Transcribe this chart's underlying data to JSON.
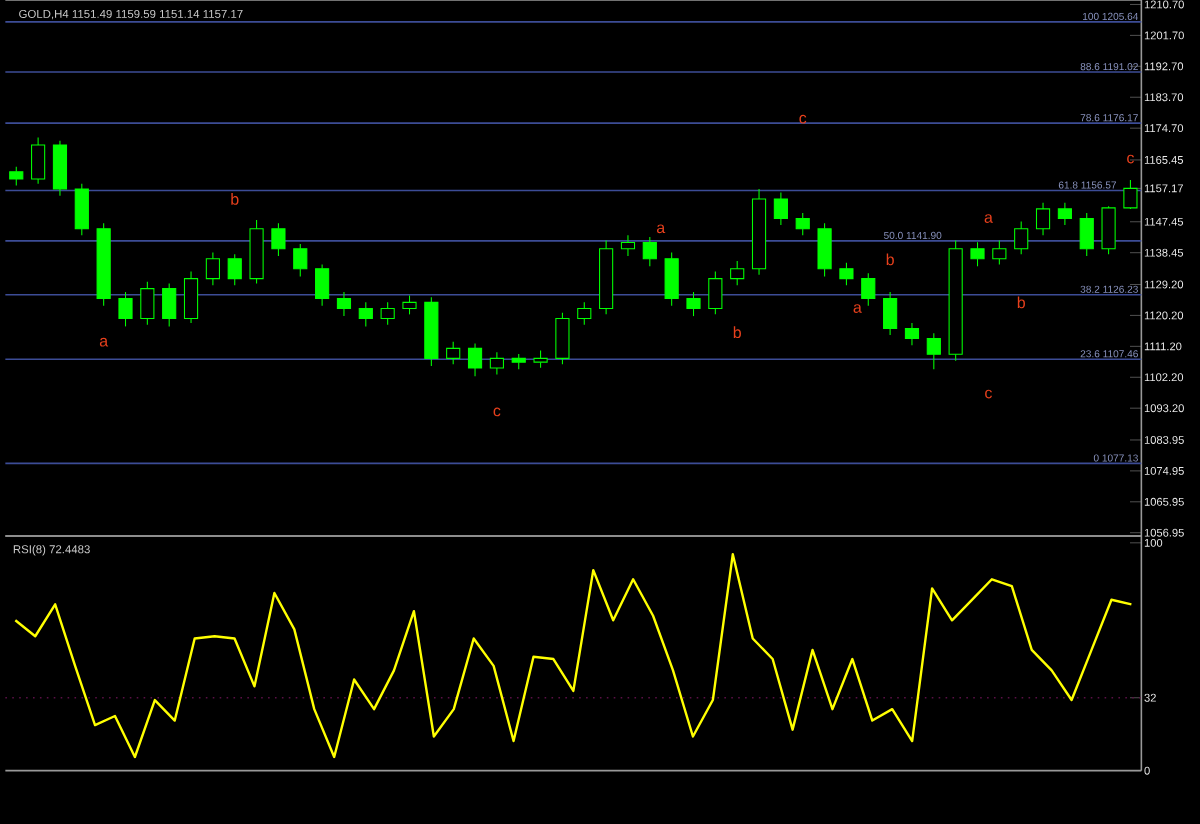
{
  "chart_data": [
    {
      "type": "candlestick",
      "color": "#00ff00",
      "categories": [
        null,
        null,
        null,
        null,
        null,
        null,
        null,
        null,
        null,
        null,
        null,
        null,
        null,
        null,
        null,
        null,
        null,
        null,
        null,
        null,
        null,
        null,
        null,
        null,
        null,
        null,
        null,
        null,
        null,
        null,
        null,
        null,
        null,
        null,
        null,
        null,
        null,
        null,
        null,
        null,
        null,
        null,
        null,
        null,
        null,
        null,
        null,
        null,
        null,
        null,
        null,
        null
      ],
      "ohlc": [
        [
          1162,
          1163.5,
          1158,
          1159.9
        ],
        [
          1159.9,
          1172,
          1158.5,
          1169.8
        ],
        [
          1169.8,
          1171,
          1155,
          1157.0
        ],
        [
          1157,
          1158.5,
          1143.5,
          1145.4
        ],
        [
          1145.4,
          1147,
          1123,
          1125.1
        ],
        [
          1125.1,
          1127,
          1117,
          1119.3
        ],
        [
          1119.3,
          1130,
          1117.5,
          1128.0
        ],
        [
          1128,
          1129.5,
          1117,
          1119.3
        ],
        [
          1119.3,
          1133,
          1118,
          1130.9
        ],
        [
          1130.9,
          1138.5,
          1129,
          1136.7
        ],
        [
          1136.7,
          1138,
          1129,
          1130.9
        ],
        [
          1130.9,
          1148,
          1129.5,
          1145.4
        ],
        [
          1145.4,
          1147,
          1137.5,
          1139.6
        ],
        [
          1139.6,
          1141,
          1131.5,
          1133.8
        ],
        [
          1133.8,
          1135,
          1123,
          1125.1
        ],
        [
          1125.1,
          1127,
          1120,
          1122.2
        ],
        [
          1122.2,
          1124,
          1117,
          1119.3
        ],
        [
          1119.3,
          1124,
          1117.5,
          1122.2
        ],
        [
          1122.2,
          1126,
          1120.5,
          1124.0
        ],
        [
          1124,
          1125.5,
          1105.5,
          1107.7
        ],
        [
          1107.7,
          1112.5,
          1106,
          1110.6
        ],
        [
          1110.6,
          1112,
          1102.5,
          1104.9
        ],
        [
          1104.9,
          1109.5,
          1103,
          1107.7
        ],
        [
          1107.7,
          1109,
          1104.5,
          1106.6
        ],
        [
          1106.6,
          1110,
          1105,
          1107.7
        ],
        [
          1107.7,
          1121,
          1106,
          1119.3
        ],
        [
          1119.3,
          1124,
          1117.5,
          1122.2
        ],
        [
          1122.2,
          1142,
          1120.5,
          1139.6
        ],
        [
          1139.6,
          1143.5,
          1137.5,
          1141.4
        ],
        [
          1141.4,
          1143,
          1134.5,
          1136.7
        ],
        [
          1136.7,
          1138.5,
          1123,
          1125.1
        ],
        [
          1125.1,
          1127,
          1120,
          1122.2
        ],
        [
          1122.2,
          1133,
          1120.5,
          1130.9
        ],
        [
          1130.9,
          1136,
          1129,
          1133.8
        ],
        [
          1133.8,
          1157,
          1132,
          1154.1
        ],
        [
          1154.1,
          1156,
          1146.5,
          1148.4
        ],
        [
          1148.4,
          1150,
          1143.5,
          1145.4
        ],
        [
          1145.4,
          1147,
          1131.5,
          1133.8
        ],
        [
          1133.8,
          1135.5,
          1129,
          1130.9
        ],
        [
          1130.9,
          1132.5,
          1123,
          1125.1
        ],
        [
          1125.1,
          1127,
          1114.5,
          1116.4
        ],
        [
          1116.4,
          1118,
          1111.5,
          1113.5
        ],
        [
          1113.5,
          1115,
          1104.5,
          1108.9
        ],
        [
          1108.9,
          1142,
          1107,
          1139.6
        ],
        [
          1139.6,
          1141.5,
          1134.5,
          1136.7
        ],
        [
          1136.7,
          1142,
          1135,
          1139.6
        ],
        [
          1139.6,
          1147.5,
          1138,
          1145.4
        ],
        [
          1145.4,
          1153,
          1143.5,
          1151.2
        ],
        [
          1151.2,
          1153,
          1146.5,
          1148.4
        ],
        [
          1148.4,
          1150,
          1137.5,
          1139.6
        ],
        [
          1139.6,
          1152,
          1138,
          1151.49
        ],
        [
          1151.49,
          1159.59,
          1151.14,
          1157.17
        ]
      ],
      "ylim": [
        1056,
        1212
      ],
      "yticks": [
        {
          "value": 1210.7,
          "label": "1210.70"
        },
        {
          "value": 1201.7,
          "label": "1201.70"
        },
        {
          "value": 1192.7,
          "label": "1192.70"
        },
        {
          "value": 1183.7,
          "label": "1183.70"
        },
        {
          "value": 1174.7,
          "label": "1174.70"
        },
        {
          "value": 1165.45,
          "label": "1165.45"
        },
        {
          "value": 1157.17,
          "label": "1157.17"
        },
        {
          "value": 1147.45,
          "label": "1147.45"
        },
        {
          "value": 1138.45,
          "label": "1138.45"
        },
        {
          "value": 1129.2,
          "label": "1129.20"
        },
        {
          "value": 1120.2,
          "label": "1120.20"
        },
        {
          "value": 1111.2,
          "label": "1111.20"
        },
        {
          "value": 1102.2,
          "label": "1102.20"
        },
        {
          "value": 1093.2,
          "label": "1093.20"
        },
        {
          "value": 1083.95,
          "label": "1083.95"
        },
        {
          "value": 1074.95,
          "label": "1074.95"
        },
        {
          "value": 1065.95,
          "label": "1065.95"
        },
        {
          "value": 1056.95,
          "label": "1056.95"
        }
      ],
      "tick_labels": "y",
      "ref_lines": [
        {
          "axis": "y",
          "value": 1205.64,
          "label": "100 1205.64",
          "color": "#3c4c96"
        },
        {
          "axis": "y",
          "value": 1191.02,
          "label": "88.6 1191.02",
          "color": "#3c4c96"
        },
        {
          "axis": "y",
          "value": 1176.17,
          "label": "78.6 1176.17",
          "color": "#3c4c96"
        },
        {
          "axis": "y",
          "value": 1156.57,
          "label": "61.8 1156.57",
          "color": "#3c4c96"
        },
        {
          "axis": "y",
          "value": 1141.9,
          "label": "50.0 1141.90",
          "color": "#3c4c96"
        },
        {
          "axis": "y",
          "value": 1126.23,
          "label": "38.2 1126.23",
          "color": "#3c4c96"
        },
        {
          "axis": "y",
          "value": 1107.46,
          "label": "23.6 1107.46",
          "color": "#3c4c96"
        },
        {
          "axis": "y",
          "value": 1077.13,
          "label": "0 1077.13",
          "color": "#3c4c96"
        }
      ],
      "annotations": [
        "GOLD,H4  1151.49 1159.59 1151.14 1157.17",
        "a",
        "b",
        "c",
        "a",
        "b",
        "c",
        "a",
        "b",
        "a",
        "b",
        "c",
        "c"
      ]
    },
    {
      "type": "line",
      "categories": [
        null,
        null,
        null,
        null,
        null,
        null,
        null,
        null,
        null,
        null,
        null,
        null,
        null,
        null,
        null,
        null,
        null,
        null,
        null,
        null,
        null,
        null,
        null,
        null,
        null,
        null,
        null,
        null,
        null,
        null,
        null,
        null,
        null,
        null,
        null,
        null,
        null,
        null,
        null,
        null,
        null,
        null,
        null,
        null,
        null,
        null,
        null,
        null,
        null,
        null,
        null,
        null,
        null,
        null,
        null,
        null,
        null
      ],
      "series": [
        {
          "color": "#ffff00",
          "values": [
            66,
            59,
            73,
            46,
            20,
            24,
            6,
            31,
            22,
            58,
            59,
            58,
            37,
            78,
            62,
            27,
            6,
            40,
            27,
            44,
            70,
            15,
            27,
            58,
            46,
            13,
            50,
            49,
            35,
            88,
            66,
            84,
            68,
            44,
            15,
            31,
            95,
            58,
            49,
            18,
            53,
            27,
            49,
            22,
            27,
            13,
            80,
            66,
            75,
            84,
            81,
            53,
            44,
            31,
            53,
            75,
            73
          ]
        }
      ],
      "ylim": [
        0,
        103
      ],
      "yticks": [
        0,
        32,
        100
      ],
      "tick_labels": "y",
      "ref_lines": [
        {
          "axis": "y",
          "value": 32,
          "color": "#5a1046",
          "line_style": "dotted"
        }
      ],
      "annotations": [
        "RSI(8) 72.4483"
      ]
    }
  ]
}
